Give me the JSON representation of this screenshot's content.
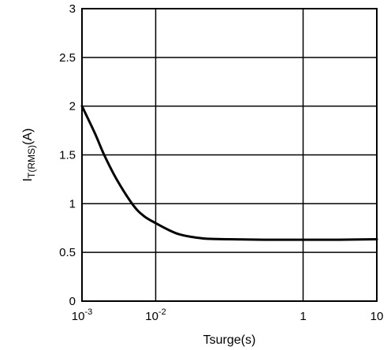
{
  "chart_data": {
    "type": "line",
    "xscale": "log",
    "xlim": [
      0.001,
      10
    ],
    "ylim": [
      0,
      3
    ],
    "grid": true,
    "xlabel": "Tsurge(s)",
    "ylabel": {
      "main": "I",
      "subscript": "T(RMS)",
      "suffix": "(A)"
    },
    "xticks": [
      {
        "value": 0.001,
        "base": "10",
        "exp": "-3"
      },
      {
        "value": 0.01,
        "base": "10",
        "exp": "-2"
      },
      {
        "value": 1,
        "base": "1",
        "exp": ""
      },
      {
        "value": 10,
        "base": "10",
        "exp": ""
      }
    ],
    "yticks": [
      {
        "value": 0,
        "label": "0"
      },
      {
        "value": 0.5,
        "label": "0.5"
      },
      {
        "value": 1,
        "label": "1"
      },
      {
        "value": 1.5,
        "label": "1.5"
      },
      {
        "value": 2,
        "label": "2"
      },
      {
        "value": 2.5,
        "label": "2.5"
      },
      {
        "value": 3,
        "label": "3"
      }
    ],
    "series": [
      {
        "x": [
          0.001,
          0.0015,
          0.002,
          0.003,
          0.005,
          0.007,
          0.01,
          0.015,
          0.02,
          0.03,
          0.05,
          0.1,
          0.3,
          1,
          3,
          10
        ],
        "y": [
          2.0,
          1.72,
          1.5,
          1.24,
          0.98,
          0.87,
          0.8,
          0.73,
          0.69,
          0.66,
          0.64,
          0.635,
          0.63,
          0.63,
          0.63,
          0.635
        ]
      }
    ]
  }
}
